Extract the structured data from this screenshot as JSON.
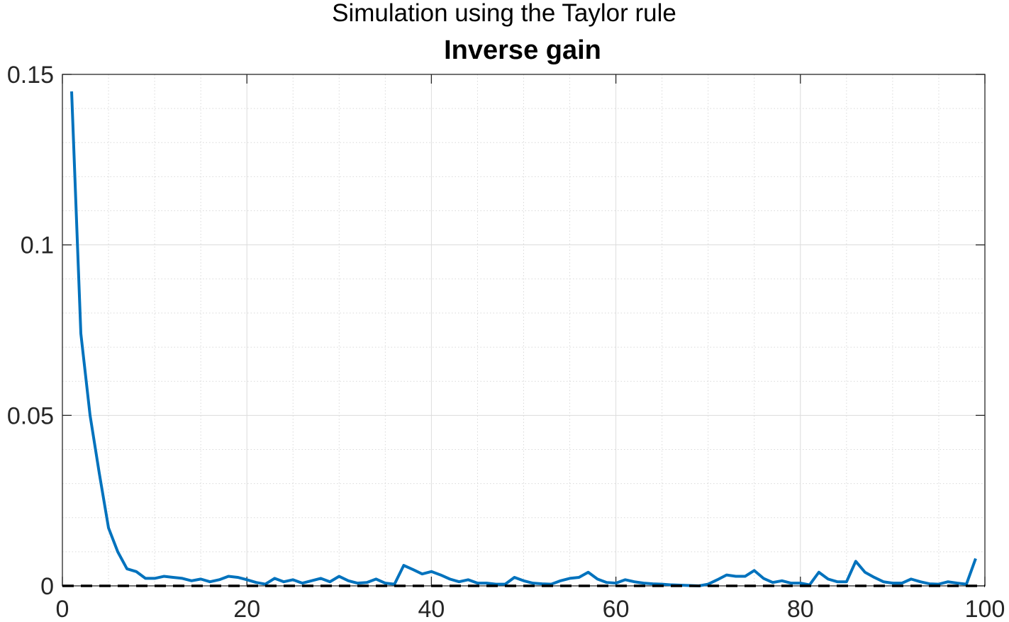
{
  "suptitle": "Simulation using the Taylor rule",
  "title": "Inverse gain",
  "chart_data": {
    "type": "line",
    "title": "Inverse gain",
    "xlabel": "",
    "ylabel": "",
    "xlim": [
      0,
      100
    ],
    "ylim": [
      0,
      0.15
    ],
    "xticks": [
      0,
      20,
      40,
      60,
      80,
      100
    ],
    "xtick_labels": [
      "0",
      "20",
      "40",
      "60",
      "80",
      "100"
    ],
    "yticks": [
      0,
      0.05,
      0.1,
      0.15
    ],
    "ytick_labels": [
      "0",
      "0.05",
      "0.1",
      "0.15"
    ],
    "grid": true,
    "minor_grid": true,
    "series": [
      {
        "color": "#0072BD",
        "x": [
          1,
          2,
          3,
          4,
          5,
          6,
          7,
          8,
          9,
          10,
          11,
          12,
          13,
          14,
          15,
          16,
          17,
          18,
          19,
          20,
          21,
          22,
          23,
          24,
          25,
          26,
          27,
          28,
          29,
          30,
          31,
          32,
          33,
          34,
          35,
          36,
          37,
          38,
          39,
          40,
          41,
          42,
          43,
          44,
          45,
          46,
          47,
          48,
          49,
          50,
          51,
          52,
          53,
          54,
          55,
          56,
          57,
          58,
          59,
          60,
          61,
          62,
          63,
          64,
          65,
          66,
          67,
          68,
          69,
          70,
          71,
          72,
          73,
          74,
          75,
          76,
          77,
          78,
          79,
          80,
          81,
          82,
          83,
          84,
          85,
          86,
          87,
          88,
          89,
          90,
          91,
          92,
          93,
          94,
          95,
          96,
          97,
          98,
          99
        ],
        "y": [
          0.145,
          0.074,
          0.05,
          0.033,
          0.017,
          0.01,
          0.005,
          0.0042,
          0.0022,
          0.0022,
          0.0028,
          0.0025,
          0.0022,
          0.0015,
          0.002,
          0.0012,
          0.0018,
          0.0028,
          0.0025,
          0.0018,
          0.001,
          0.0005,
          0.0022,
          0.0012,
          0.0018,
          0.0008,
          0.0015,
          0.0022,
          0.0012,
          0.0028,
          0.0015,
          0.0008,
          0.001,
          0.002,
          0.0008,
          0.0005,
          0.006,
          0.0048,
          0.0035,
          0.0042,
          0.0032,
          0.002,
          0.0012,
          0.0018,
          0.0008,
          0.0008,
          0.0005,
          0.0005,
          0.0025,
          0.0015,
          0.0008,
          0.0006,
          0.0005,
          0.0015,
          0.0022,
          0.0025,
          0.004,
          0.002,
          0.001,
          0.0008,
          0.0018,
          0.0012,
          0.0008,
          0.0006,
          0.0005,
          0.0003,
          0.0002,
          0.0001,
          0.0,
          0.0005,
          0.0018,
          0.0032,
          0.0028,
          0.0028,
          0.0045,
          0.0022,
          0.001,
          0.0015,
          0.0008,
          0.0008,
          0.0003,
          0.004,
          0.002,
          0.0012,
          0.0012,
          0.0072,
          0.004,
          0.0025,
          0.0012,
          0.0008,
          0.0008,
          0.002,
          0.0012,
          0.0006,
          0.0005,
          0.0012,
          0.0008,
          0.0005,
          0.008
        ]
      },
      {
        "color": "#000000",
        "style": "dashed",
        "x": [
          0,
          100
        ],
        "y": [
          0,
          0
        ]
      }
    ]
  }
}
